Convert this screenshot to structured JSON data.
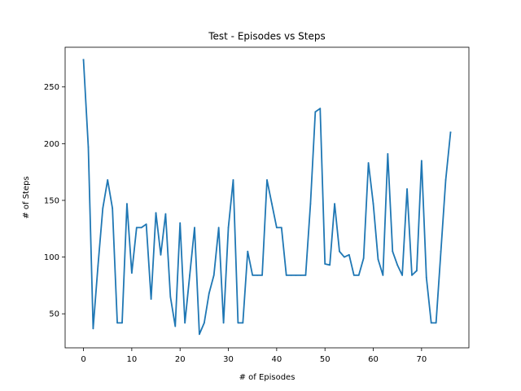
{
  "chart_data": {
    "type": "line",
    "title": "Test - Episodes vs Steps",
    "xlabel": "# of Episodes",
    "ylabel": "# of Steps",
    "xlim": [
      -3.8,
      79.8
    ],
    "ylim": [
      20,
      285
    ],
    "xticks": [
      0,
      10,
      20,
      30,
      40,
      50,
      60,
      70
    ],
    "yticks": [
      50,
      100,
      150,
      200,
      250
    ],
    "grid": false,
    "line_color": "#1f77b4",
    "series": [
      {
        "x": [
          0,
          1,
          2,
          3,
          4,
          5,
          6,
          7,
          8,
          9,
          10,
          11,
          12,
          13,
          14,
          15,
          16,
          17,
          18,
          19,
          20,
          21,
          22,
          23,
          24,
          25,
          26,
          27,
          28,
          29,
          30,
          31,
          32,
          33,
          34,
          35,
          36,
          37,
          38,
          39,
          40,
          41,
          42,
          43,
          44,
          45,
          46,
          47,
          48,
          49,
          50,
          51,
          52,
          53,
          54,
          55,
          56,
          57,
          58,
          59,
          60,
          61,
          62,
          63,
          64,
          65,
          66,
          67,
          68,
          69,
          70,
          71,
          72,
          73,
          74,
          75,
          76
        ],
        "values": [
          274,
          197,
          37,
          92,
          143,
          168,
          143,
          42,
          42,
          147,
          86,
          126,
          126,
          129,
          63,
          139,
          102,
          138,
          65,
          39,
          130,
          42,
          84,
          126,
          32,
          42,
          68,
          84,
          126,
          42,
          126,
          168,
          42,
          42,
          105,
          84,
          84,
          84,
          168,
          147,
          126,
          126,
          84,
          84,
          84,
          84,
          84,
          147,
          228,
          231,
          94,
          93,
          147,
          105,
          100,
          102,
          84,
          84,
          99,
          183,
          147,
          98,
          84,
          191,
          105,
          93,
          84,
          160,
          84,
          88,
          185,
          82,
          42,
          42,
          105,
          168,
          210
        ]
      }
    ]
  }
}
